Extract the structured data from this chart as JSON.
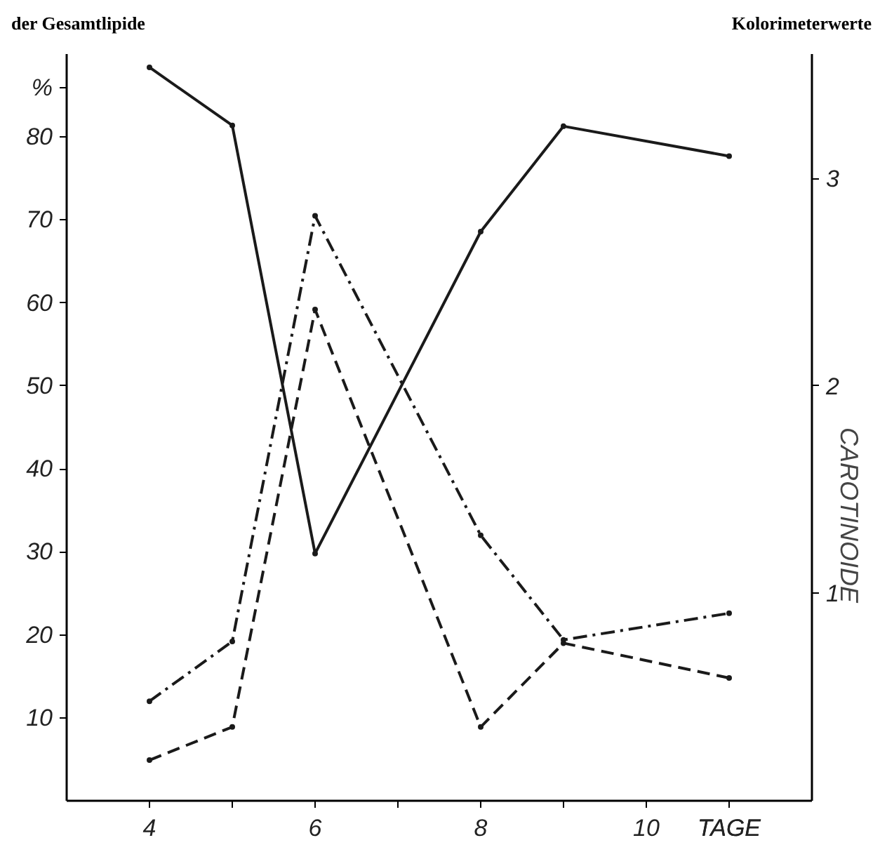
{
  "chart_data": {
    "type": "line",
    "ylabel": "%",
    "y2label": "CAROTINOIDE",
    "xlabel": "TAGE",
    "annotations": [
      "der Gesamtlipide",
      "Kolorimeterwerte"
    ],
    "x": [
      4,
      5,
      6,
      8,
      9,
      11
    ],
    "series": [
      {
        "color": "#1a1a1a",
        "line_style": "solid",
        "values": [
          88.4,
          81.4,
          29.8,
          68.6,
          81.3,
          77.7
        ]
      },
      {
        "color": "#1a1a1a",
        "line_style": "dashdot",
        "values": [
          12,
          19.2,
          70.5,
          32,
          19.4,
          22.6
        ]
      },
      {
        "color": "#1a1a1a",
        "line_style": "dashed",
        "values": [
          4.9,
          8.9,
          59.2,
          8.9,
          19,
          14.8
        ]
      }
    ],
    "xlim": [
      3,
      12
    ],
    "xticks": [
      4,
      {
        "value": 5,
        "label": null
      },
      6,
      {
        "value": 7,
        "label": null
      },
      8,
      {
        "value": 9,
        "label": null
      },
      10,
      {
        "value": 11,
        "label": null
      }
    ],
    "ylim": [
      0,
      90
    ],
    "yticks": [
      10,
      20,
      30,
      40,
      50,
      60,
      70,
      80
    ],
    "y2lim": [
      0,
      3.6
    ],
    "y2ticks": [
      1,
      2,
      3
    ],
    "grid": false,
    "marker": "none"
  }
}
